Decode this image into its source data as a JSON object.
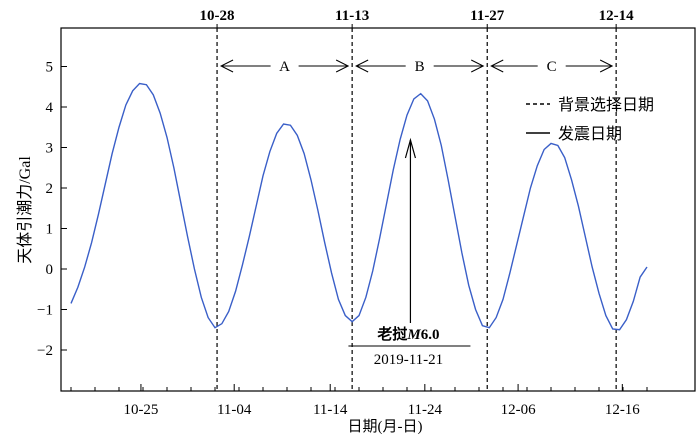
{
  "chart_data": {
    "type": "line",
    "title": "",
    "xlabel": "日期(月-日)",
    "ylabel": "天体引潮力/Gal",
    "ylim": [
      -3,
      6
    ],
    "yticks": [
      -2,
      -1,
      0,
      1,
      2,
      3,
      4,
      5
    ],
    "x_tick_labels": [
      "10-25",
      "11-04",
      "11-14",
      "11-24",
      "12-06",
      "12-16"
    ],
    "top_labels": [
      "10-28",
      "11-13",
      "11-27",
      "12-14"
    ],
    "series": [
      {
        "name": "",
        "color": "#3a5fc8",
        "points": [
          [
            0,
            -0.85
          ],
          [
            1,
            -0.45
          ],
          [
            2,
            0.05
          ],
          [
            3,
            0.65
          ],
          [
            4,
            1.35
          ],
          [
            5,
            2.1
          ],
          [
            6,
            2.85
          ],
          [
            7,
            3.5
          ],
          [
            8,
            4.05
          ],
          [
            9,
            4.4
          ],
          [
            10,
            4.58
          ],
          [
            11,
            4.55
          ],
          [
            12,
            4.3
          ],
          [
            13,
            3.85
          ],
          [
            14,
            3.25
          ],
          [
            15,
            2.5
          ],
          [
            16,
            1.65
          ],
          [
            17,
            0.8
          ],
          [
            18,
            0.0
          ],
          [
            19,
            -0.7
          ],
          [
            20,
            -1.2
          ],
          [
            21,
            -1.45
          ],
          [
            22,
            -1.35
          ],
          [
            23,
            -1.05
          ],
          [
            24,
            -0.55
          ],
          [
            25,
            0.1
          ],
          [
            26,
            0.8
          ],
          [
            27,
            1.55
          ],
          [
            28,
            2.3
          ],
          [
            29,
            2.9
          ],
          [
            30,
            3.35
          ],
          [
            31,
            3.58
          ],
          [
            32,
            3.55
          ],
          [
            33,
            3.3
          ],
          [
            34,
            2.85
          ],
          [
            35,
            2.2
          ],
          [
            36,
            1.45
          ],
          [
            37,
            0.65
          ],
          [
            38,
            -0.1
          ],
          [
            39,
            -0.75
          ],
          [
            40,
            -1.15
          ],
          [
            41,
            -1.3
          ],
          [
            42,
            -1.15
          ],
          [
            43,
            -0.7
          ],
          [
            44,
            -0.05
          ],
          [
            45,
            0.75
          ],
          [
            46,
            1.6
          ],
          [
            47,
            2.45
          ],
          [
            48,
            3.2
          ],
          [
            49,
            3.8
          ],
          [
            50,
            4.2
          ],
          [
            51,
            4.33
          ],
          [
            52,
            4.15
          ],
          [
            53,
            3.7
          ],
          [
            54,
            3.05
          ],
          [
            55,
            2.2
          ],
          [
            56,
            1.3
          ],
          [
            57,
            0.4
          ],
          [
            58,
            -0.4
          ],
          [
            59,
            -1.0
          ],
          [
            60,
            -1.4
          ],
          [
            61,
            -1.45
          ],
          [
            62,
            -1.2
          ],
          [
            63,
            -0.75
          ],
          [
            64,
            -0.1
          ],
          [
            65,
            0.6
          ],
          [
            66,
            1.3
          ],
          [
            67,
            2.0
          ],
          [
            68,
            2.55
          ],
          [
            69,
            2.95
          ],
          [
            70,
            3.1
          ],
          [
            71,
            3.05
          ],
          [
            72,
            2.75
          ],
          [
            73,
            2.2
          ],
          [
            74,
            1.55
          ],
          [
            75,
            0.8
          ],
          [
            76,
            0.05
          ],
          [
            77,
            -0.6
          ],
          [
            78,
            -1.15
          ],
          [
            79,
            -1.48
          ],
          [
            80,
            -1.5
          ],
          [
            81,
            -1.25
          ],
          [
            82,
            -0.8
          ],
          [
            83,
            -0.2
          ],
          [
            84,
            0.05
          ]
        ]
      }
    ],
    "vertical_markers": [
      {
        "label": "10-28",
        "x": 21.3
      },
      {
        "label": "11-13",
        "x": 41.0
      },
      {
        "label": "11-27",
        "x": 60.7
      },
      {
        "label": "12-14",
        "x": 79.5
      }
    ],
    "intervals": [
      {
        "label": "A",
        "from": 21.3,
        "to": 41.0
      },
      {
        "label": "B",
        "from": 41.0,
        "to": 60.7
      },
      {
        "label": "C",
        "from": 60.7,
        "to": 79.5
      }
    ],
    "event": {
      "label": "老挝M6.0",
      "date": "2019-11-21",
      "x": 49.5
    },
    "legend": {
      "position": "right",
      "entries": [
        {
          "label": "背景选择日期",
          "style": "dashed"
        },
        {
          "label": "发震日期",
          "style": "solid"
        }
      ]
    }
  }
}
